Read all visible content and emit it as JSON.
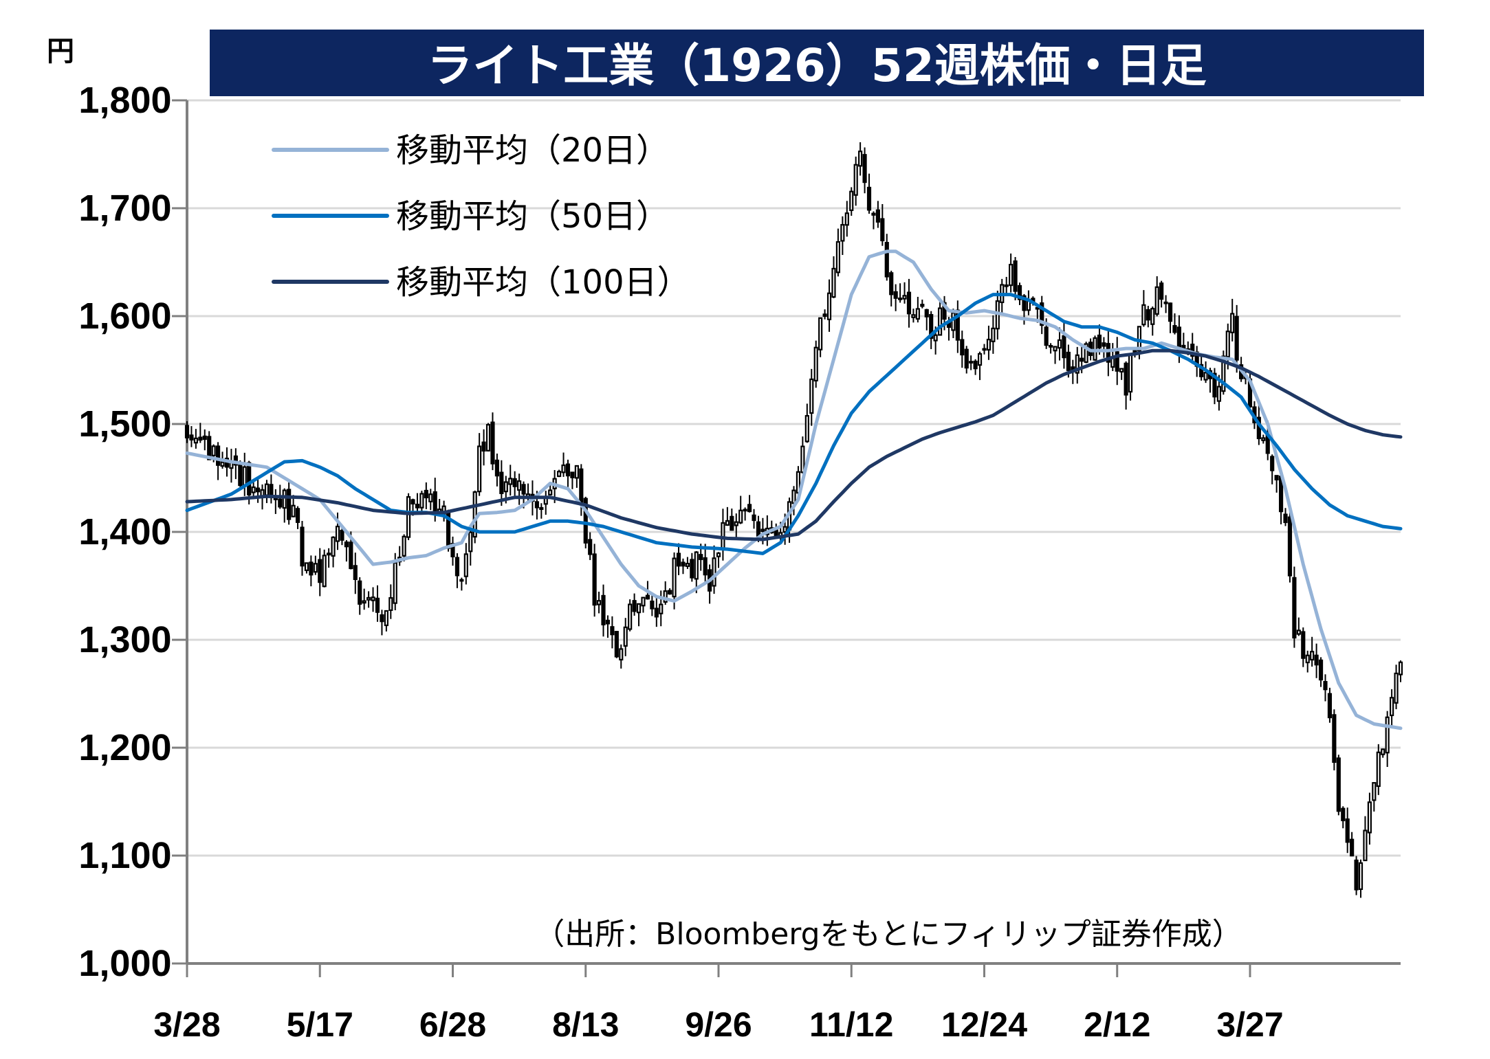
{
  "chart_data": {
    "type": "candlestick",
    "title": "ライト工業（1926）52週株価・日足",
    "unit_label": "円",
    "source_note": "（出所：Bloombergをもとにフィリップ証券作成）",
    "ylim": [
      1000,
      1800
    ],
    "y_ticks": [
      "1,000",
      "1,100",
      "1,200",
      "1,300",
      "1,400",
      "1,500",
      "1,600",
      "1,700",
      "1,800"
    ],
    "y_tick_values": [
      1000,
      1100,
      1200,
      1300,
      1400,
      1500,
      1600,
      1700,
      1800
    ],
    "x_ticks": [
      "3/28",
      "5/17",
      "6/28",
      "8/13",
      "9/26",
      "11/12",
      "12/24",
      "2/12",
      "3/27"
    ],
    "x_tick_index": [
      0,
      30,
      60,
      90,
      120,
      150,
      180,
      210,
      240
    ],
    "grid": "horizontal",
    "legend_position": "top-left",
    "legend": [
      {
        "key": "ma20",
        "label": "移動平均（20日）",
        "color": "#95b3d7"
      },
      {
        "key": "ma50",
        "label": "移動平均（50日）",
        "color": "#0070c0"
      },
      {
        "key": "ma100",
        "label": "移動平均（100日）",
        "color": "#1f3864"
      }
    ],
    "colors": {
      "title_band": "#0d2660",
      "up_body": "#ffffff",
      "down_body": "#000000",
      "grid": "#d9d9d9",
      "axis": "#808080"
    },
    "anchor_closes": [
      [
        0,
        1500
      ],
      [
        8,
        1465
      ],
      [
        12,
        1450
      ],
      [
        18,
        1440
      ],
      [
        24,
        1420
      ],
      [
        26,
        1380
      ],
      [
        30,
        1360
      ],
      [
        34,
        1405
      ],
      [
        38,
        1350
      ],
      [
        42,
        1330
      ],
      [
        44,
        1320
      ],
      [
        48,
        1380
      ],
      [
        50,
        1420
      ],
      [
        54,
        1440
      ],
      [
        58,
        1420
      ],
      [
        60,
        1370
      ],
      [
        62,
        1360
      ],
      [
        64,
        1400
      ],
      [
        66,
        1480
      ],
      [
        68,
        1490
      ],
      [
        70,
        1450
      ],
      [
        74,
        1440
      ],
      [
        78,
        1420
      ],
      [
        82,
        1430
      ],
      [
        86,
        1460
      ],
      [
        88,
        1450
      ],
      [
        90,
        1400
      ],
      [
        92,
        1340
      ],
      [
        96,
        1300
      ],
      [
        98,
        1290
      ],
      [
        100,
        1320
      ],
      [
        104,
        1350
      ],
      [
        106,
        1310
      ],
      [
        110,
        1370
      ],
      [
        114,
        1360
      ],
      [
        116,
        1380
      ],
      [
        118,
        1340
      ],
      [
        120,
        1390
      ],
      [
        124,
        1420
      ],
      [
        128,
        1410
      ],
      [
        132,
        1390
      ],
      [
        134,
        1400
      ],
      [
        136,
        1430
      ],
      [
        138,
        1460
      ],
      [
        140,
        1520
      ],
      [
        142,
        1580
      ],
      [
        144,
        1600
      ],
      [
        146,
        1640
      ],
      [
        148,
        1690
      ],
      [
        150,
        1720
      ],
      [
        152,
        1740
      ],
      [
        154,
        1700
      ],
      [
        156,
        1680
      ],
      [
        158,
        1640
      ],
      [
        160,
        1620
      ],
      [
        164,
        1610
      ],
      [
        168,
        1590
      ],
      [
        172,
        1600
      ],
      [
        176,
        1560
      ],
      [
        178,
        1550
      ],
      [
        182,
        1600
      ],
      [
        184,
        1640
      ],
      [
        186,
        1640
      ],
      [
        188,
        1620
      ],
      [
        190,
        1610
      ],
      [
        194,
        1580
      ],
      [
        198,
        1560
      ],
      [
        202,
        1560
      ],
      [
        206,
        1580
      ],
      [
        208,
        1560
      ],
      [
        212,
        1540
      ],
      [
        216,
        1600
      ],
      [
        220,
        1620
      ],
      [
        222,
        1590
      ],
      [
        226,
        1570
      ],
      [
        228,
        1550
      ],
      [
        232,
        1530
      ],
      [
        234,
        1560
      ],
      [
        236,
        1590
      ],
      [
        238,
        1550
      ],
      [
        240,
        1520
      ],
      [
        242,
        1480
      ],
      [
        244,
        1470
      ],
      [
        246,
        1460
      ],
      [
        248,
        1400
      ],
      [
        250,
        1310
      ],
      [
        252,
        1290
      ],
      [
        254,
        1300
      ],
      [
        256,
        1270
      ],
      [
        258,
        1220
      ],
      [
        260,
        1150
      ],
      [
        262,
        1100
      ],
      [
        264,
        1080
      ],
      [
        266,
        1130
      ],
      [
        268,
        1180
      ],
      [
        270,
        1200
      ],
      [
        272,
        1250
      ],
      [
        274,
        1270
      ]
    ],
    "ma_series": {
      "ma20": [
        [
          0,
          1473
        ],
        [
          10,
          1465
        ],
        [
          18,
          1460
        ],
        [
          22,
          1450
        ],
        [
          26,
          1440
        ],
        [
          30,
          1430
        ],
        [
          34,
          1410
        ],
        [
          38,
          1390
        ],
        [
          42,
          1370
        ],
        [
          46,
          1372
        ],
        [
          50,
          1376
        ],
        [
          54,
          1378
        ],
        [
          58,
          1385
        ],
        [
          62,
          1390
        ],
        [
          64,
          1405
        ],
        [
          66,
          1417
        ],
        [
          70,
          1418
        ],
        [
          74,
          1420
        ],
        [
          78,
          1430
        ],
        [
          82,
          1445
        ],
        [
          86,
          1440
        ],
        [
          90,
          1420
        ],
        [
          94,
          1395
        ],
        [
          98,
          1370
        ],
        [
          102,
          1350
        ],
        [
          106,
          1340
        ],
        [
          110,
          1336
        ],
        [
          114,
          1345
        ],
        [
          118,
          1355
        ],
        [
          122,
          1370
        ],
        [
          126,
          1385
        ],
        [
          130,
          1398
        ],
        [
          134,
          1405
        ],
        [
          138,
          1430
        ],
        [
          142,
          1500
        ],
        [
          146,
          1560
        ],
        [
          150,
          1620
        ],
        [
          154,
          1655
        ],
        [
          158,
          1660
        ],
        [
          160,
          1660
        ],
        [
          164,
          1650
        ],
        [
          168,
          1625
        ],
        [
          172,
          1605
        ],
        [
          176,
          1603
        ],
        [
          180,
          1605
        ],
        [
          184,
          1602
        ],
        [
          188,
          1598
        ],
        [
          192,
          1596
        ],
        [
          196,
          1590
        ],
        [
          200,
          1578
        ],
        [
          204,
          1568
        ],
        [
          208,
          1568
        ],
        [
          212,
          1570
        ],
        [
          216,
          1570
        ],
        [
          220,
          1575
        ],
        [
          224,
          1570
        ],
        [
          228,
          1565
        ],
        [
          232,
          1562
        ],
        [
          236,
          1560
        ],
        [
          240,
          1540
        ],
        [
          244,
          1500
        ],
        [
          248,
          1440
        ],
        [
          252,
          1370
        ],
        [
          256,
          1310
        ],
        [
          260,
          1260
        ],
        [
          264,
          1230
        ],
        [
          268,
          1222
        ],
        [
          274,
          1218
        ]
      ],
      "ma50": [
        [
          0,
          1420
        ],
        [
          10,
          1435
        ],
        [
          18,
          1455
        ],
        [
          22,
          1465
        ],
        [
          26,
          1466
        ],
        [
          30,
          1460
        ],
        [
          34,
          1452
        ],
        [
          38,
          1440
        ],
        [
          42,
          1430
        ],
        [
          46,
          1420
        ],
        [
          50,
          1418
        ],
        [
          54,
          1418
        ],
        [
          58,
          1415
        ],
        [
          62,
          1405
        ],
        [
          66,
          1400
        ],
        [
          70,
          1400
        ],
        [
          74,
          1400
        ],
        [
          78,
          1405
        ],
        [
          82,
          1410
        ],
        [
          86,
          1410
        ],
        [
          90,
          1408
        ],
        [
          94,
          1405
        ],
        [
          98,
          1400
        ],
        [
          102,
          1395
        ],
        [
          106,
          1390
        ],
        [
          110,
          1388
        ],
        [
          114,
          1386
        ],
        [
          118,
          1385
        ],
        [
          122,
          1384
        ],
        [
          126,
          1382
        ],
        [
          130,
          1380
        ],
        [
          134,
          1390
        ],
        [
          138,
          1415
        ],
        [
          142,
          1445
        ],
        [
          146,
          1480
        ],
        [
          150,
          1510
        ],
        [
          154,
          1530
        ],
        [
          158,
          1545
        ],
        [
          162,
          1560
        ],
        [
          166,
          1575
        ],
        [
          170,
          1590
        ],
        [
          174,
          1600
        ],
        [
          178,
          1612
        ],
        [
          182,
          1620
        ],
        [
          186,
          1620
        ],
        [
          190,
          1615
        ],
        [
          194,
          1605
        ],
        [
          198,
          1595
        ],
        [
          202,
          1590
        ],
        [
          206,
          1590
        ],
        [
          210,
          1585
        ],
        [
          214,
          1578
        ],
        [
          218,
          1575
        ],
        [
          222,
          1568
        ],
        [
          226,
          1560
        ],
        [
          230,
          1550
        ],
        [
          234,
          1538
        ],
        [
          238,
          1525
        ],
        [
          242,
          1500
        ],
        [
          246,
          1480
        ],
        [
          250,
          1458
        ],
        [
          254,
          1440
        ],
        [
          258,
          1425
        ],
        [
          262,
          1415
        ],
        [
          266,
          1410
        ],
        [
          270,
          1405
        ],
        [
          274,
          1403
        ]
      ],
      "ma100": [
        [
          0,
          1428
        ],
        [
          10,
          1430
        ],
        [
          18,
          1433
        ],
        [
          26,
          1432
        ],
        [
          34,
          1427
        ],
        [
          42,
          1420
        ],
        [
          50,
          1417
        ],
        [
          58,
          1418
        ],
        [
          66,
          1425
        ],
        [
          74,
          1432
        ],
        [
          82,
          1432
        ],
        [
          90,
          1425
        ],
        [
          98,
          1413
        ],
        [
          106,
          1404
        ],
        [
          114,
          1398
        ],
        [
          122,
          1394
        ],
        [
          130,
          1393
        ],
        [
          138,
          1398
        ],
        [
          142,
          1410
        ],
        [
          146,
          1428
        ],
        [
          150,
          1445
        ],
        [
          154,
          1460
        ],
        [
          158,
          1470
        ],
        [
          162,
          1478
        ],
        [
          166,
          1486
        ],
        [
          170,
          1492
        ],
        [
          174,
          1497
        ],
        [
          178,
          1502
        ],
        [
          182,
          1508
        ],
        [
          186,
          1518
        ],
        [
          190,
          1528
        ],
        [
          194,
          1538
        ],
        [
          198,
          1546
        ],
        [
          202,
          1552
        ],
        [
          206,
          1558
        ],
        [
          210,
          1563
        ],
        [
          214,
          1565
        ],
        [
          218,
          1568
        ],
        [
          222,
          1568
        ],
        [
          226,
          1566
        ],
        [
          230,
          1563
        ],
        [
          234,
          1558
        ],
        [
          238,
          1552
        ],
        [
          242,
          1544
        ],
        [
          246,
          1535
        ],
        [
          250,
          1526
        ],
        [
          254,
          1517
        ],
        [
          258,
          1508
        ],
        [
          262,
          1500
        ],
        [
          266,
          1494
        ],
        [
          270,
          1490
        ],
        [
          274,
          1488
        ]
      ]
    }
  }
}
